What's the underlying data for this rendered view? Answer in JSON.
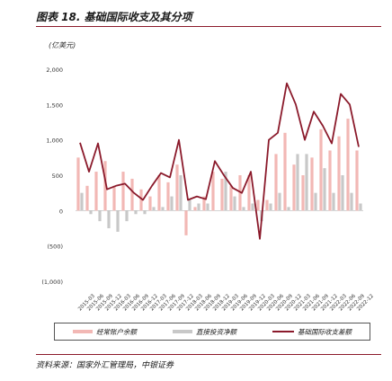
{
  "title": "图表 18. 基础国际收支及其分项",
  "source": "资料来源：国家外汇管理局，中银证券",
  "colors": {
    "current": "#f2b8b5",
    "direct": "#c8c8c8",
    "basic": "#8b1a2b",
    "rule": "#8b1a2b"
  },
  "chart_data": {
    "type": "bar",
    "unit_label": "(亿美元)",
    "ylim": [
      -1000,
      2000
    ],
    "y_ticks": [
      2000,
      1500,
      1000,
      500,
      0,
      -500,
      -1000
    ],
    "y_tick_labels": [
      "2,000",
      "1,500",
      "1,000",
      "500",
      "0",
      "(500)",
      "(1,000)"
    ],
    "legend_position": "bottom",
    "categories": [
      "2015Q1",
      "2015Q2",
      "2015Q3",
      "2015Q4",
      "2016Q1",
      "2016Q2",
      "2016Q3",
      "2016Q4",
      "2017Q1",
      "2017Q2",
      "2017Q3",
      "2017Q4",
      "2018Q1",
      "2018Q2",
      "2018Q3",
      "2018Q4",
      "2019Q1",
      "2019Q2",
      "2019Q3",
      "2019Q4",
      "2020Q1",
      "2020Q2",
      "2020Q3",
      "2020Q4",
      "2021Q1",
      "2021Q2",
      "2021Q3",
      "2021Q4",
      "2022Q1",
      "2022Q2",
      "2022Q3",
      "2022Q4"
    ],
    "x_tick_labels": [
      "2015-03",
      "2015-06",
      "2015-09",
      "2015-12",
      "2016-03",
      "2016-06",
      "2016-09",
      "2016-12",
      "2017-03",
      "2017-06",
      "2017-09",
      "2017-12",
      "2018-03",
      "2018-06",
      "2018-09",
      "2018-12",
      "2019-03",
      "2019-06",
      "2019-09",
      "2019-12",
      "2020-03",
      "2020-06",
      "2020-09",
      "2020-12",
      "2021-03",
      "2021-06",
      "2021-09",
      "2021-12",
      "2022-03",
      "2022-06",
      "2022-09",
      "2022-12"
    ],
    "series": [
      {
        "name": "经常账户余额",
        "kind": "bar",
        "values": [
          750,
          350,
          550,
          700,
          350,
          550,
          450,
          300,
          200,
          500,
          400,
          650,
          -350,
          50,
          200,
          550,
          450,
          350,
          500,
          500,
          150,
          150,
          800,
          1100,
          650,
          500,
          750,
          1150,
          850,
          1050,
          1300,
          850
        ]
      },
      {
        "name": "直接投资净额",
        "kind": "bar",
        "values": [
          250,
          -50,
          -150,
          -250,
          -300,
          -150,
          -50,
          -50,
          50,
          50,
          200,
          500,
          150,
          100,
          100,
          0,
          550,
          200,
          50,
          100,
          -150,
          100,
          250,
          50,
          800,
          800,
          250,
          600,
          250,
          500,
          250,
          100
        ]
      },
      {
        "name": "基础国际收支差额",
        "kind": "line",
        "values": [
          960,
          550,
          950,
          300,
          350,
          380,
          250,
          150,
          350,
          530,
          470,
          1000,
          150,
          200,
          160,
          700,
          500,
          320,
          250,
          550,
          -400,
          1000,
          1100,
          1800,
          1500,
          1000,
          1400,
          1200,
          950,
          1650,
          1500,
          900
        ]
      }
    ]
  }
}
